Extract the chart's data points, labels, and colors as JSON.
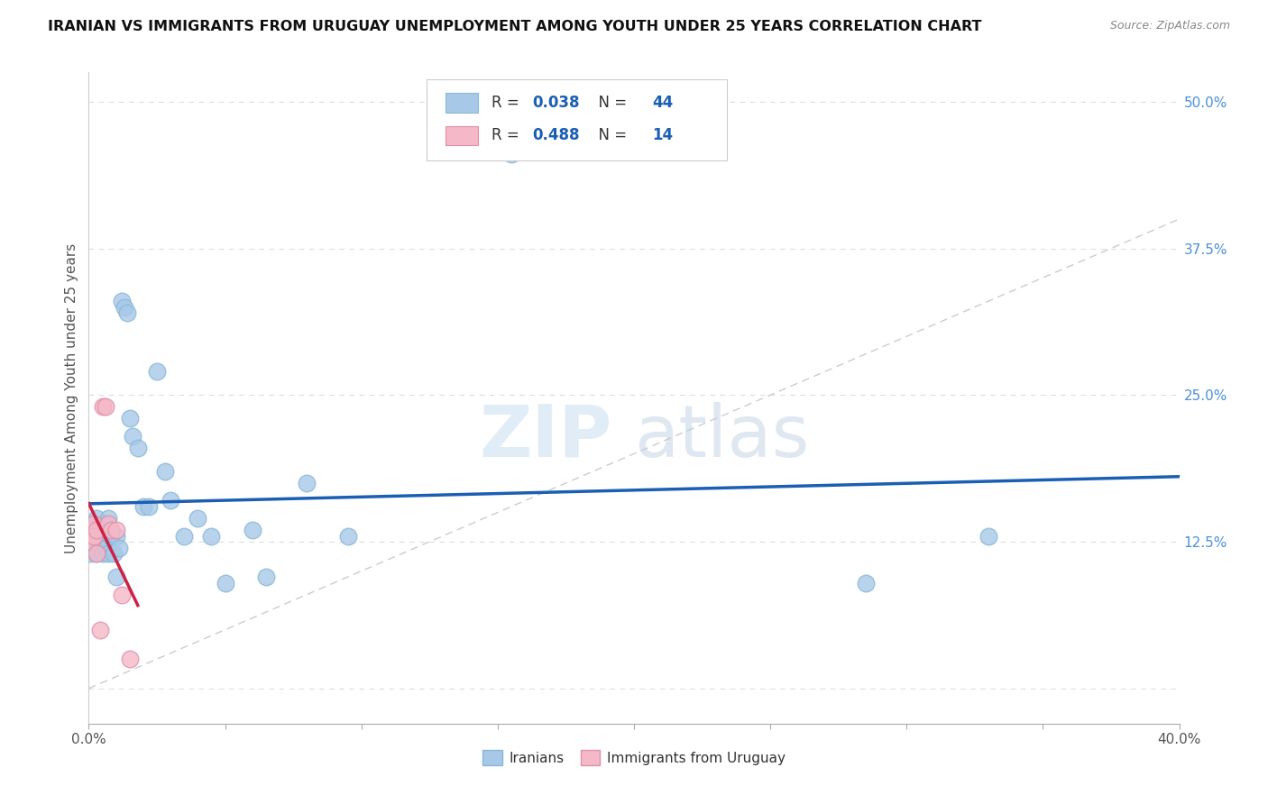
{
  "title": "IRANIAN VS IMMIGRANTS FROM URUGUAY UNEMPLOYMENT AMONG YOUTH UNDER 25 YEARS CORRELATION CHART",
  "source": "Source: ZipAtlas.com",
  "ylabel": "Unemployment Among Youth under 25 years",
  "legend_label1": "Iranians",
  "legend_label2": "Immigrants from Uruguay",
  "R1": 0.038,
  "N1": 44,
  "R2": 0.488,
  "N2": 14,
  "color_iranian": "#a8c8e8",
  "color_uruguay": "#f4b8c8",
  "color_line1": "#1a5fb4",
  "color_line2": "#cc2244",
  "color_diagonal": "#cccccc",
  "color_yticks": "#4a90d9",
  "watermark_zip": "ZIP",
  "watermark_atlas": "atlas",
  "xmin": 0.0,
  "xmax": 0.4,
  "ymin": -0.03,
  "ymax": 0.525,
  "ytick_values": [
    0.0,
    0.125,
    0.25,
    0.375,
    0.5
  ],
  "iranians_x": [
    0.001,
    0.001,
    0.001,
    0.002,
    0.002,
    0.002,
    0.003,
    0.003,
    0.003,
    0.004,
    0.004,
    0.005,
    0.005,
    0.006,
    0.006,
    0.007,
    0.007,
    0.008,
    0.009,
    0.01,
    0.01,
    0.011,
    0.012,
    0.013,
    0.014,
    0.015,
    0.016,
    0.018,
    0.02,
    0.022,
    0.025,
    0.028,
    0.03,
    0.035,
    0.04,
    0.045,
    0.05,
    0.06,
    0.065,
    0.08,
    0.095,
    0.155,
    0.285,
    0.33
  ],
  "iranians_y": [
    0.135,
    0.125,
    0.115,
    0.14,
    0.13,
    0.12,
    0.145,
    0.135,
    0.115,
    0.13,
    0.12,
    0.125,
    0.115,
    0.14,
    0.12,
    0.145,
    0.115,
    0.13,
    0.115,
    0.13,
    0.095,
    0.12,
    0.33,
    0.325,
    0.32,
    0.23,
    0.215,
    0.205,
    0.155,
    0.155,
    0.27,
    0.185,
    0.16,
    0.13,
    0.145,
    0.13,
    0.09,
    0.135,
    0.095,
    0.175,
    0.13,
    0.455,
    0.09,
    0.13
  ],
  "uruguay_x": [
    0.001,
    0.001,
    0.002,
    0.002,
    0.003,
    0.003,
    0.004,
    0.005,
    0.006,
    0.007,
    0.008,
    0.01,
    0.012,
    0.015
  ],
  "uruguay_y": [
    0.135,
    0.125,
    0.14,
    0.13,
    0.135,
    0.115,
    0.05,
    0.24,
    0.24,
    0.14,
    0.135,
    0.135,
    0.08,
    0.025
  ]
}
